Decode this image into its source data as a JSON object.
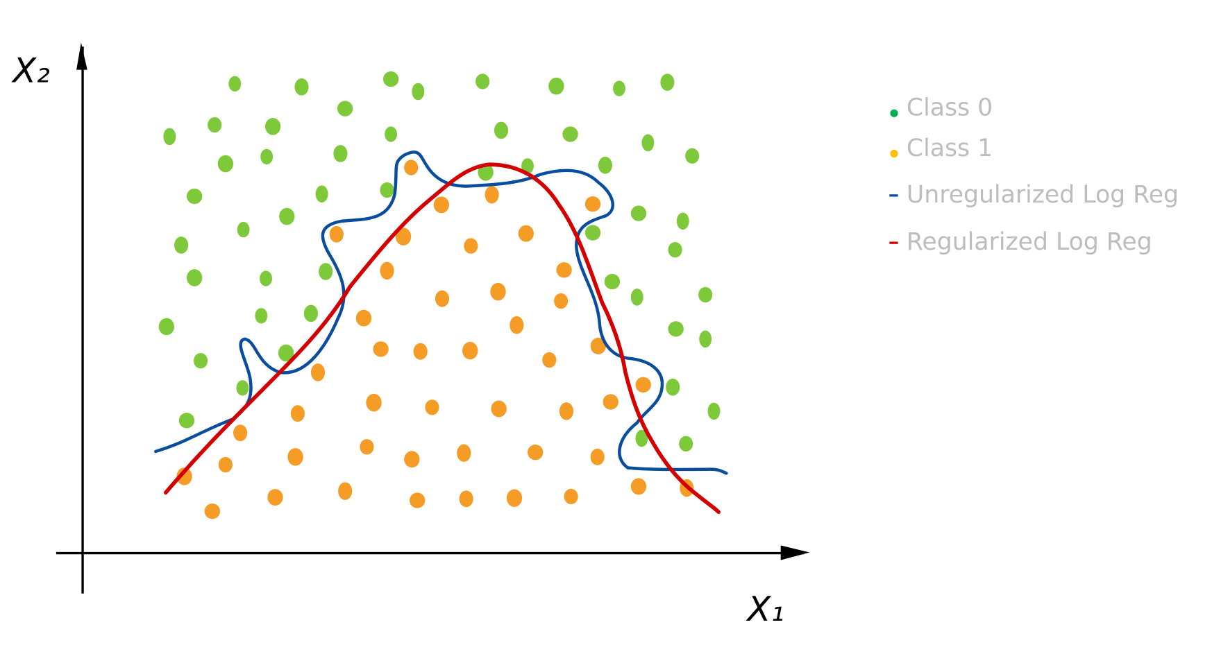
{
  "axes": {
    "x_label": "X₁",
    "y_label": "X₂"
  },
  "legend": [
    {
      "label": "Class 0",
      "color": "#00b050",
      "shape": "dot"
    },
    {
      "label": "Class 1",
      "color": "#ffc000",
      "shape": "dot"
    },
    {
      "label": "Unregularized Log Reg",
      "color": "#0a4d9e",
      "shape": "dash"
    },
    {
      "label": "Regularized Log Reg",
      "color": "#d40000",
      "shape": "dash"
    }
  ]
}
